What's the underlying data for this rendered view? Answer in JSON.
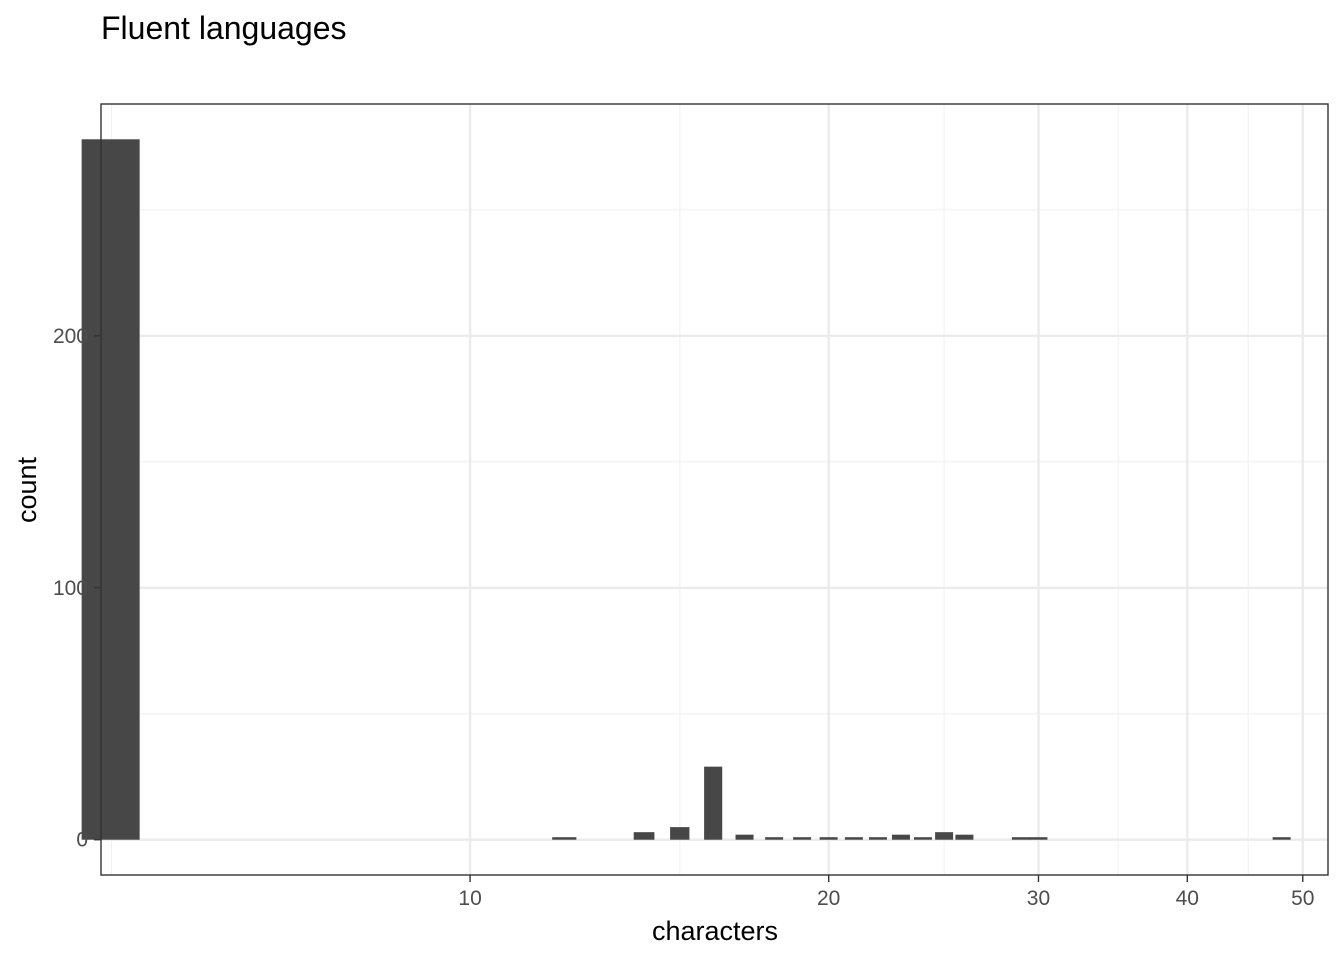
{
  "chart_data": {
    "type": "bar",
    "title": "Fluent languages",
    "xlabel": "characters",
    "ylabel": "count",
    "x_scale": "log10",
    "xlim": [
      4.9,
      52.5
    ],
    "ylim": [
      -14,
      292
    ],
    "x_ticks": [
      10,
      20,
      30,
      40,
      50
    ],
    "x_minor_ticks": [
      5,
      15,
      25,
      35,
      45
    ],
    "y_ticks": [
      0,
      100,
      200
    ],
    "y_minor_ticks": [
      50,
      150,
      250
    ],
    "grid": true,
    "bars": [
      {
        "x": 5,
        "count": 278
      },
      {
        "x": 12,
        "count": 1
      },
      {
        "x": 14,
        "count": 3
      },
      {
        "x": 15,
        "count": 5
      },
      {
        "x": 16,
        "count": 29
      },
      {
        "x": 17,
        "count": 2
      },
      {
        "x": 18,
        "count": 1
      },
      {
        "x": 19,
        "count": 1
      },
      {
        "x": 20,
        "count": 1
      },
      {
        "x": 21,
        "count": 1
      },
      {
        "x": 22,
        "count": 1
      },
      {
        "x": 23,
        "count": 2
      },
      {
        "x": 24,
        "count": 1
      },
      {
        "x": 25,
        "count": 3
      },
      {
        "x": 26,
        "count": 2
      },
      {
        "x": 29,
        "count": 1
      },
      {
        "x": 30,
        "count": 1
      },
      {
        "x": 48,
        "count": 1
      }
    ],
    "colors": {
      "bar": "#474747",
      "grid_major": "#ebebeb",
      "grid_minor": "#f2f2f2",
      "panel_border": "#333333",
      "tick": "#333333"
    }
  }
}
